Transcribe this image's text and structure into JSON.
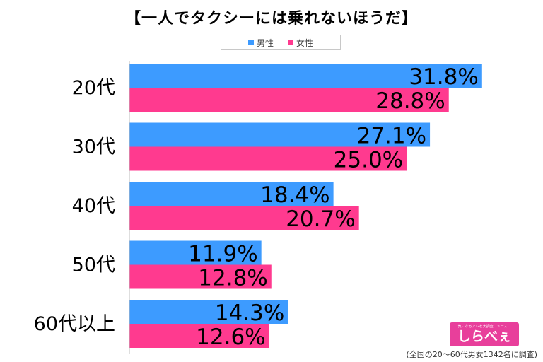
{
  "title": "【一人でタクシーには乗れないほうだ】",
  "legend": [
    {
      "label": "男性",
      "color": "#3d9bff"
    },
    {
      "label": "女性",
      "color": "#ff3a8f"
    }
  ],
  "chart_data": {
    "type": "bar",
    "orientation": "horizontal",
    "title": "【一人でタクシーには乗れないほうだ】",
    "categories": [
      "20代",
      "30代",
      "40代",
      "50代",
      "60代以上"
    ],
    "series": [
      {
        "name": "男性",
        "color": "#3d9bff",
        "values": [
          31.8,
          27.1,
          18.4,
          11.9,
          14.3
        ]
      },
      {
        "name": "女性",
        "color": "#ff3a8f",
        "values": [
          28.8,
          25.0,
          20.7,
          12.8,
          12.6
        ]
      }
    ],
    "value_suffix": "%",
    "xlim": [
      0,
      35
    ],
    "grid": false,
    "legend_position": "top"
  },
  "logo": {
    "tagline": "気になるアレを大調査ニュース！",
    "name": "しらべぇ"
  },
  "footnote": "(全国の20～60代男女1342名に調査)"
}
